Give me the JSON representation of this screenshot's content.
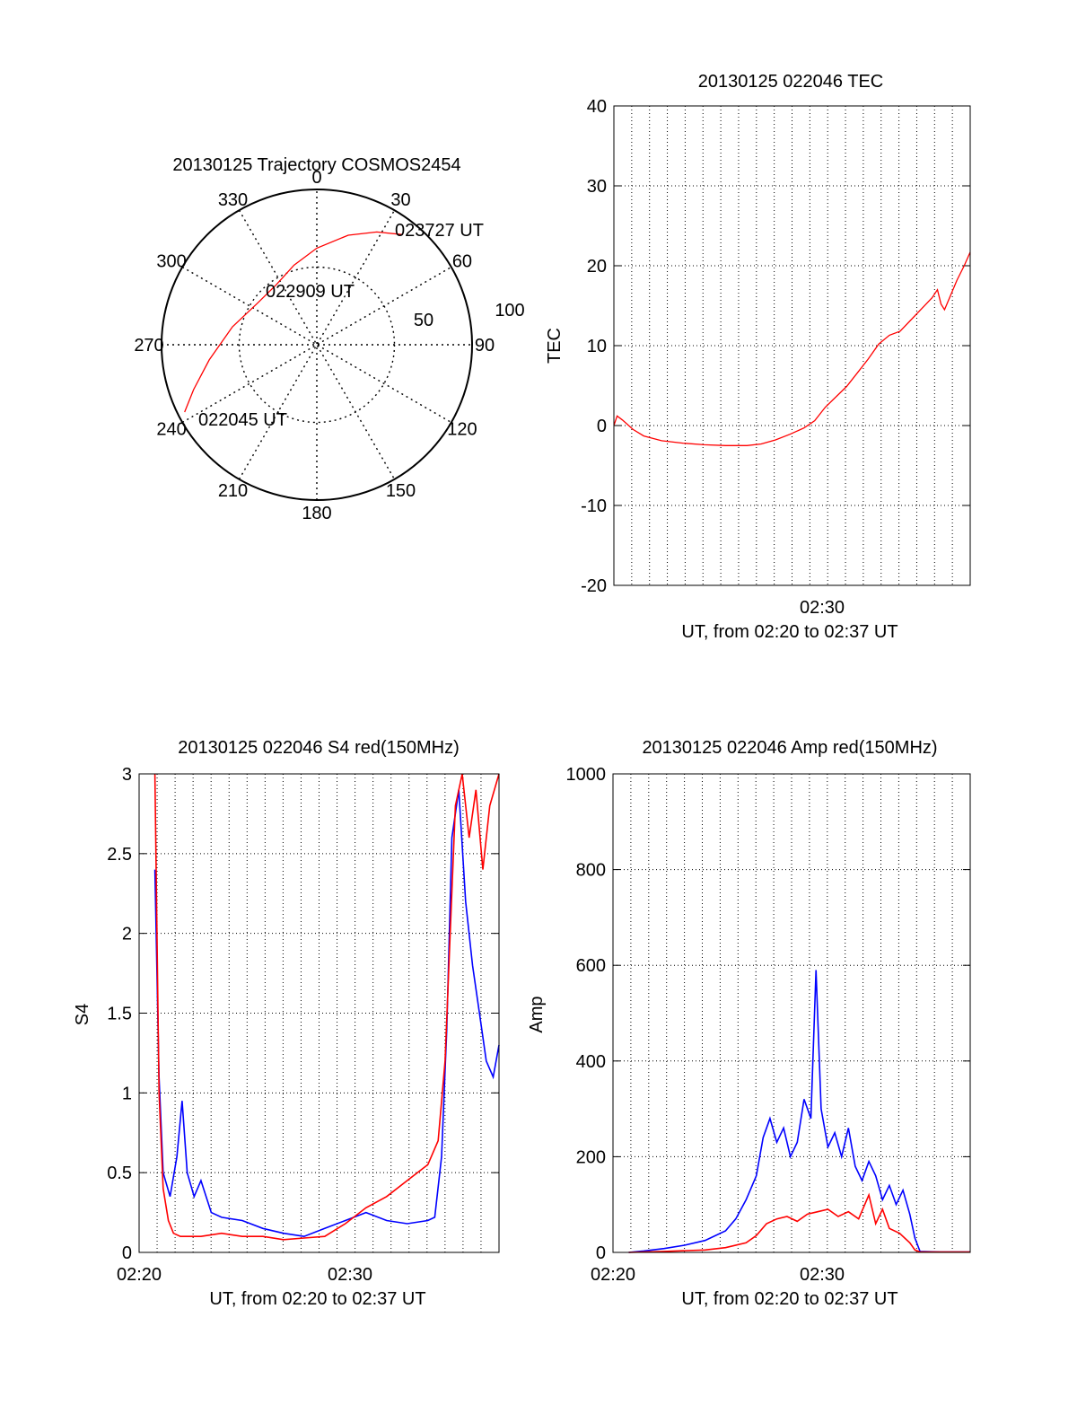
{
  "chart_data": [
    {
      "type": "polar",
      "title": "20130125 Trajectory COSMOS2454",
      "angle_labels": [
        "0",
        "30",
        "60",
        "90",
        "120",
        "150",
        "180",
        "210",
        "240",
        "270",
        "300",
        "330"
      ],
      "radius_labels": [
        "50",
        "100"
      ],
      "point_labels": [
        "023727 UT",
        "022909 UT",
        "022045 UT"
      ],
      "trajectory": {
        "color": "#ff0000",
        "points": [
          {
            "az": 243,
            "el": 4
          },
          {
            "az": 250,
            "el": 14
          },
          {
            "az": 262,
            "el": 27
          },
          {
            "az": 282,
            "el": 40
          },
          {
            "az": 305,
            "el": 48
          },
          {
            "az": 326,
            "el": 48
          },
          {
            "az": 344,
            "el": 42
          },
          {
            "az": 0,
            "el": 34
          },
          {
            "az": 16,
            "el": 24
          },
          {
            "az": 28,
            "el": 16
          },
          {
            "az": 38,
            "el": 9
          }
        ]
      }
    },
    {
      "type": "line",
      "title": "20130125 022046 TEC",
      "ylabel": "TEC",
      "xlabel": "UT, from 02:20 to 02:37 UT",
      "xlim": [
        "02:20:46",
        "02:37:27"
      ],
      "ylim": [
        -20,
        40
      ],
      "x_tick_labels": [
        "02:30"
      ],
      "y_tick_labels": [
        "-20",
        "-10",
        "0",
        "10",
        "20",
        "30",
        "40"
      ],
      "series": [
        {
          "color": "#ff0000",
          "points": [
            [
              "02:20:46",
              0
            ],
            [
              "02:20:55",
              1.2
            ],
            [
              "02:21:10",
              0.7
            ],
            [
              "02:21:40",
              -0.5
            ],
            [
              "02:22:10",
              -1.3
            ],
            [
              "02:23:00",
              -1.9
            ],
            [
              "02:24:00",
              -2.2
            ],
            [
              "02:25:00",
              -2.4
            ],
            [
              "02:26:00",
              -2.5
            ],
            [
              "02:27:00",
              -2.5
            ],
            [
              "02:27:40",
              -2.3
            ],
            [
              "02:28:20",
              -1.8
            ],
            [
              "02:29:00",
              -1.1
            ],
            [
              "02:29:40",
              -0.3
            ],
            [
              "02:30:10",
              0.6
            ],
            [
              "02:30:40",
              2.3
            ],
            [
              "02:31:10",
              3.6
            ],
            [
              "02:31:40",
              4.9
            ],
            [
              "02:32:10",
              6.6
            ],
            [
              "02:32:40",
              8.3
            ],
            [
              "02:33:10",
              10.2
            ],
            [
              "02:33:40",
              11.3
            ],
            [
              "02:34:10",
              11.8
            ],
            [
              "02:34:40",
              13.2
            ],
            [
              "02:35:10",
              14.6
            ],
            [
              "02:35:40",
              16.0
            ],
            [
              "02:35:55",
              17.0
            ],
            [
              "02:36:05",
              15.2
            ],
            [
              "02:36:15",
              14.5
            ],
            [
              "02:36:30",
              16.1
            ],
            [
              "02:36:50",
              18.2
            ],
            [
              "02:37:10",
              20.0
            ],
            [
              "02:37:27",
              21.7
            ]
          ]
        }
      ]
    },
    {
      "type": "line",
      "title": "20130125 022046 S4 red(150MHz)",
      "ylabel": "S4",
      "xlabel": "UT, from 02:20 to 02:37 UT",
      "xlim": [
        "02:20:00",
        "02:37:27"
      ],
      "ylim": [
        0,
        3
      ],
      "x_tick_labels": [
        "02:20",
        "02:30"
      ],
      "y_tick_labels": [
        "0",
        "0.5",
        "1",
        "1.5",
        "2",
        "2.5",
        "3"
      ],
      "series": [
        {
          "color": "#0000ff",
          "points": [
            [
              "02:20:46",
              2.4
            ],
            [
              "02:20:58",
              1.1
            ],
            [
              "02:21:10",
              0.5
            ],
            [
              "02:21:30",
              0.35
            ],
            [
              "02:21:50",
              0.6
            ],
            [
              "02:22:05",
              0.95
            ],
            [
              "02:22:20",
              0.5
            ],
            [
              "02:22:40",
              0.35
            ],
            [
              "02:23:00",
              0.45
            ],
            [
              "02:23:30",
              0.25
            ],
            [
              "02:24:00",
              0.22
            ],
            [
              "02:25:00",
              0.2
            ],
            [
              "02:26:00",
              0.15
            ],
            [
              "02:27:00",
              0.12
            ],
            [
              "02:28:00",
              0.1
            ],
            [
              "02:29:00",
              0.15
            ],
            [
              "02:30:00",
              0.2
            ],
            [
              "02:31:00",
              0.25
            ],
            [
              "02:32:00",
              0.2
            ],
            [
              "02:33:00",
              0.18
            ],
            [
              "02:34:00",
              0.2
            ],
            [
              "02:34:20",
              0.22
            ],
            [
              "02:34:40",
              0.6
            ],
            [
              "02:34:55",
              1.4
            ],
            [
              "02:35:10",
              2.6
            ],
            [
              "02:35:30",
              2.9
            ],
            [
              "02:35:50",
              2.2
            ],
            [
              "02:36:10",
              1.8
            ],
            [
              "02:36:30",
              1.5
            ],
            [
              "02:36:50",
              1.2
            ],
            [
              "02:37:10",
              1.1
            ],
            [
              "02:37:27",
              1.3
            ]
          ]
        },
        {
          "color": "#ff0000",
          "points": [
            [
              "02:20:46",
              3.0
            ],
            [
              "02:20:58",
              1.0
            ],
            [
              "02:21:10",
              0.4
            ],
            [
              "02:21:25",
              0.2
            ],
            [
              "02:21:40",
              0.12
            ],
            [
              "02:22:00",
              0.1
            ],
            [
              "02:23:00",
              0.1
            ],
            [
              "02:24:00",
              0.12
            ],
            [
              "02:25:00",
              0.1
            ],
            [
              "02:26:00",
              0.1
            ],
            [
              "02:27:00",
              0.08
            ],
            [
              "02:28:00",
              0.09
            ],
            [
              "02:29:00",
              0.1
            ],
            [
              "02:30:00",
              0.18
            ],
            [
              "02:31:00",
              0.28
            ],
            [
              "02:32:00",
              0.35
            ],
            [
              "02:33:00",
              0.45
            ],
            [
              "02:34:00",
              0.55
            ],
            [
              "02:34:30",
              0.7
            ],
            [
              "02:34:50",
              1.2
            ],
            [
              "02:35:05",
              2.0
            ],
            [
              "02:35:20",
              2.8
            ],
            [
              "02:35:40",
              3.0
            ],
            [
              "02:36:00",
              2.6
            ],
            [
              "02:36:20",
              2.9
            ],
            [
              "02:36:40",
              2.4
            ],
            [
              "02:37:00",
              2.8
            ],
            [
              "02:37:27",
              3.0
            ]
          ]
        }
      ]
    },
    {
      "type": "line",
      "title": "20130125 022046 Amp red(150MHz)",
      "ylabel": "Amp",
      "xlabel": "UT, from 02:20 to 02:37 UT",
      "xlim": [
        "02:20:00",
        "02:37:27"
      ],
      "ylim": [
        0,
        1000
      ],
      "x_tick_labels": [
        "02:20",
        "02:30"
      ],
      "y_tick_labels": [
        "0",
        "200",
        "400",
        "600",
        "800",
        "1000"
      ],
      "series": [
        {
          "color": "#0000ff",
          "points": [
            [
              "02:20:46",
              0
            ],
            [
              "02:21:30",
              3
            ],
            [
              "02:22:30",
              8
            ],
            [
              "02:23:30",
              15
            ],
            [
              "02:24:30",
              25
            ],
            [
              "02:25:30",
              45
            ],
            [
              "02:26:00",
              70
            ],
            [
              "02:26:30",
              110
            ],
            [
              "02:27:00",
              160
            ],
            [
              "02:27:20",
              240
            ],
            [
              "02:27:40",
              280
            ],
            [
              "02:28:00",
              230
            ],
            [
              "02:28:20",
              260
            ],
            [
              "02:28:40",
              200
            ],
            [
              "02:29:00",
              230
            ],
            [
              "02:29:20",
              320
            ],
            [
              "02:29:40",
              280
            ],
            [
              "02:29:55",
              590
            ],
            [
              "02:30:10",
              300
            ],
            [
              "02:30:30",
              220
            ],
            [
              "02:30:50",
              250
            ],
            [
              "02:31:10",
              200
            ],
            [
              "02:31:30",
              260
            ],
            [
              "02:31:50",
              180
            ],
            [
              "02:32:10",
              150
            ],
            [
              "02:32:30",
              190
            ],
            [
              "02:32:50",
              160
            ],
            [
              "02:33:10",
              110
            ],
            [
              "02:33:30",
              140
            ],
            [
              "02:33:50",
              100
            ],
            [
              "02:34:10",
              130
            ],
            [
              "02:34:30",
              80
            ],
            [
              "02:34:45",
              30
            ],
            [
              "02:35:00",
              2
            ],
            [
              "02:36:00",
              1
            ],
            [
              "02:37:27",
              1
            ]
          ]
        },
        {
          "color": "#ff0000",
          "points": [
            [
              "02:20:46",
              0
            ],
            [
              "02:22:30",
              2
            ],
            [
              "02:24:30",
              5
            ],
            [
              "02:25:30",
              10
            ],
            [
              "02:26:30",
              20
            ],
            [
              "02:27:00",
              35
            ],
            [
              "02:27:30",
              60
            ],
            [
              "02:28:00",
              70
            ],
            [
              "02:28:30",
              75
            ],
            [
              "02:29:00",
              65
            ],
            [
              "02:29:30",
              80
            ],
            [
              "02:30:00",
              85
            ],
            [
              "02:30:30",
              90
            ],
            [
              "02:31:00",
              75
            ],
            [
              "02:31:30",
              85
            ],
            [
              "02:32:00",
              70
            ],
            [
              "02:32:30",
              120
            ],
            [
              "02:32:50",
              60
            ],
            [
              "02:33:10",
              90
            ],
            [
              "02:33:30",
              50
            ],
            [
              "02:34:00",
              40
            ],
            [
              "02:34:30",
              20
            ],
            [
              "02:34:45",
              5
            ],
            [
              "02:35:00",
              1
            ],
            [
              "02:37:27",
              1
            ]
          ]
        }
      ]
    }
  ]
}
